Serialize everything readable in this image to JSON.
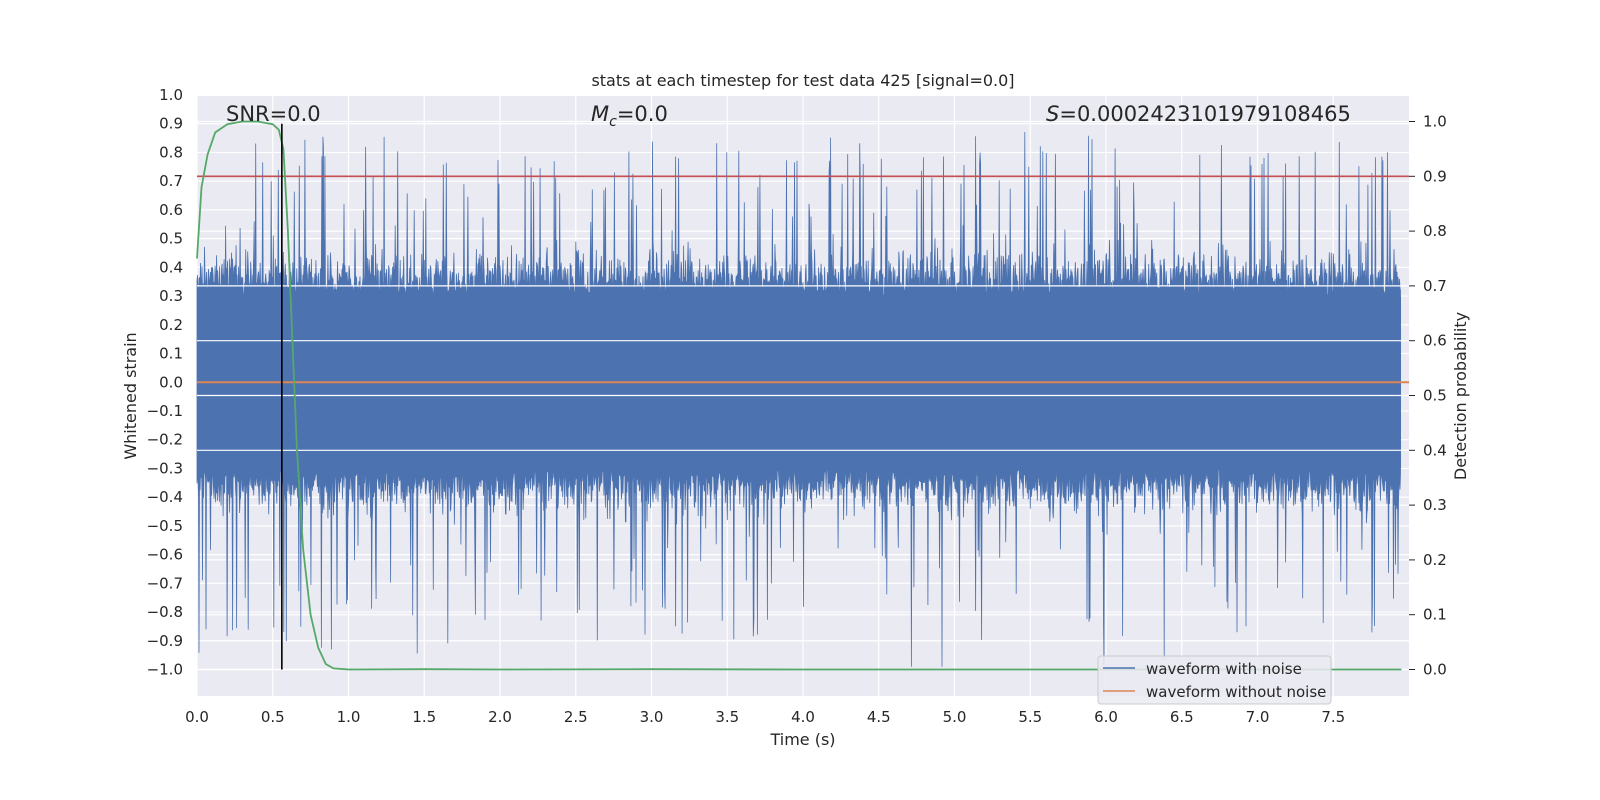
{
  "chart_data": {
    "type": "line",
    "title": "stats at each timestep for test data 425 [signal=0.0]",
    "xlabel": "Time (s)",
    "ylabel_left": "Whitened strain",
    "ylabel_right": "Detection probability",
    "xlim": [
      0.0,
      8.0
    ],
    "ylim_left": [
      -1.0,
      1.0
    ],
    "ylim_right": [
      0.0,
      1.0
    ],
    "x_ticks": [
      "0.0",
      "0.5",
      "1.0",
      "1.5",
      "2.0",
      "2.5",
      "3.0",
      "3.5",
      "4.0",
      "4.5",
      "5.0",
      "5.5",
      "6.0",
      "6.5",
      "7.0",
      "7.5"
    ],
    "x_tick_values": [
      0.0,
      0.5,
      1.0,
      1.5,
      2.0,
      2.5,
      3.0,
      3.5,
      4.0,
      4.5,
      5.0,
      5.5,
      6.0,
      6.5,
      7.0,
      7.5
    ],
    "y_left_ticks": [
      "1.0",
      "0.9",
      "0.8",
      "0.7",
      "0.6",
      "0.5",
      "0.4",
      "0.3",
      "0.2",
      "0.1",
      "0.0",
      "−0.1",
      "−0.2",
      "−0.3",
      "−0.4",
      "−0.5",
      "−0.6",
      "−0.7",
      "−0.8",
      "−0.9",
      "−1.0"
    ],
    "y_left_tick_values": [
      1.0,
      0.9,
      0.8,
      0.7,
      0.6,
      0.5,
      0.4,
      0.3,
      0.2,
      0.1,
      0.0,
      -0.1,
      -0.2,
      -0.3,
      -0.4,
      -0.5,
      -0.6,
      -0.7,
      -0.8,
      -0.9,
      -1.0
    ],
    "y_right_ticks": [
      "1.0",
      "0.9",
      "0.8",
      "0.7",
      "0.6",
      "0.5",
      "0.4",
      "0.3",
      "0.2",
      "0.1",
      "0.0"
    ],
    "y_right_tick_values": [
      1.0,
      0.9,
      0.8,
      0.7,
      0.6,
      0.5,
      0.4,
      0.3,
      0.2,
      0.1,
      0.0
    ],
    "annotations": {
      "snr": "SNR=0.0",
      "mc_symbol": "M",
      "mc_sub": "c",
      "mc_value": "=0.0",
      "s_symbol": "S",
      "s_value": "=0.0002423101979108465"
    },
    "series": [
      {
        "name": "waveform with noise",
        "color": "#4c72b0",
        "axis": "left",
        "description": "noisy whitened strain, amplitude roughly within -1.0 to 0.9"
      },
      {
        "name": "waveform without noise",
        "color": "#dd8452",
        "axis": "left",
        "y": 0.0
      }
    ],
    "detection_probability": {
      "color": "#55a868",
      "axis": "right",
      "x": [
        0.0,
        0.03,
        0.07,
        0.12,
        0.2,
        0.3,
        0.4,
        0.5,
        0.54,
        0.57,
        0.6,
        0.63,
        0.66,
        0.7,
        0.75,
        0.8,
        0.85,
        0.9,
        1.0,
        1.5,
        2.0,
        3.0,
        4.0,
        5.0,
        6.0,
        7.0,
        7.95
      ],
      "y": [
        0.75,
        0.88,
        0.94,
        0.98,
        0.995,
        1.0,
        1.0,
        0.995,
        0.985,
        0.95,
        0.8,
        0.6,
        0.4,
        0.22,
        0.1,
        0.04,
        0.01,
        0.002,
        0.0,
        0.0005,
        0.0,
        0.0005,
        0.0,
        0.0,
        0.0,
        0.0,
        0.0
      ]
    },
    "threshold": {
      "color": "#c44e52",
      "axis": "right",
      "y": 0.9
    },
    "marker": {
      "color": "#000000",
      "x": 0.56,
      "y_left_range": [
        -1.0,
        0.9
      ]
    },
    "legend": {
      "placement": "bottom-right",
      "entries": [
        {
          "label": "waveform with noise",
          "color": "#4c72b0"
        },
        {
          "label": "waveform without noise",
          "color": "#dd8452"
        }
      ]
    }
  }
}
